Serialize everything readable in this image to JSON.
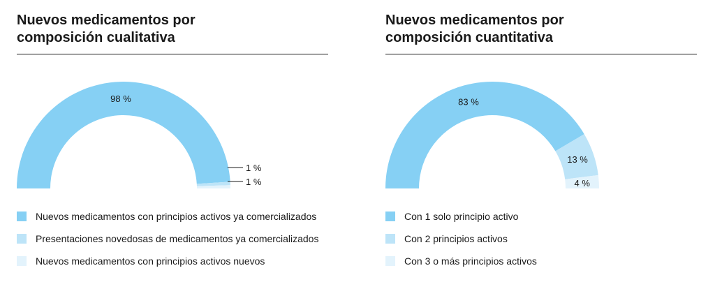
{
  "colors": {
    "dark": "#86d0f4",
    "medium": "#bde4f8",
    "light": "#e3f3fc",
    "text": "#1a1a1a"
  },
  "chart_data": [
    {
      "type": "pie",
      "variant": "half-donut",
      "title": "Nuevos medicamentos por composición cualitativa",
      "categories": [
        "Nuevos medicamentos con principios activos ya comercializados",
        "Presentaciones novedosas de medicamentos ya comercializados",
        "Nuevos medicamentos con principios activos nuevos"
      ],
      "values": [
        98,
        1,
        1
      ],
      "value_labels": [
        "98 %",
        "1 %",
        "1 %"
      ],
      "colors": [
        "#86d0f4",
        "#bde4f8",
        "#e3f3fc"
      ],
      "legend_position": "bottom"
    },
    {
      "type": "pie",
      "variant": "half-donut",
      "title": "Nuevos medicamentos por composición cuantitativa",
      "categories": [
        "Con 1 solo principio activo",
        "Con 2 principios activos",
        "Con 3 o más principios activos"
      ],
      "values": [
        83,
        13,
        4
      ],
      "value_labels": [
        "83 %",
        "13 %",
        "4 %"
      ],
      "colors": [
        "#86d0f4",
        "#bde4f8",
        "#e3f3fc"
      ],
      "legend_position": "bottom"
    }
  ],
  "titles": {
    "left_line1": "Nuevos medicamentos por",
    "left_line2": "composición cualitativa",
    "right_line1": "Nuevos medicamentos por",
    "right_line2": "composición cuantitativa"
  }
}
